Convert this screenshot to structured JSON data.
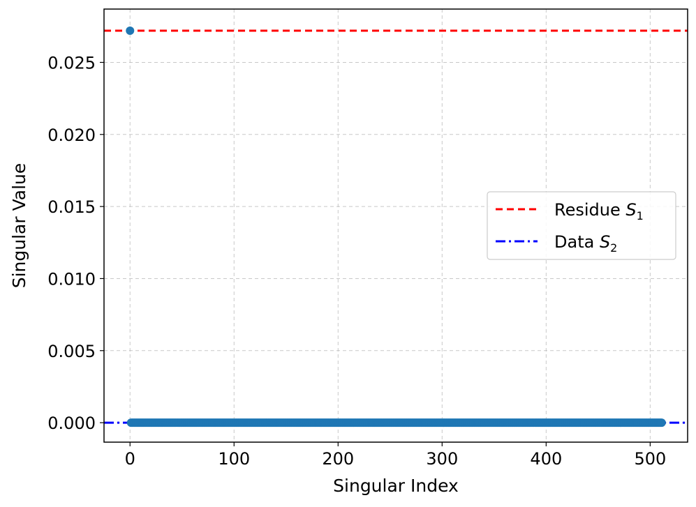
{
  "chart_data": {
    "type": "scatter",
    "xlabel": "Singular Index",
    "ylabel": "Singular Value",
    "xlim": [
      -25,
      536
    ],
    "ylim": [
      -0.00135,
      0.0287
    ],
    "xticks": [
      0,
      100,
      200,
      300,
      400,
      500
    ],
    "yticks": [
      0.0,
      0.005,
      0.01,
      0.015,
      0.02,
      0.025
    ],
    "ytick_labels": [
      "0.000",
      "0.005",
      "0.010",
      "0.015",
      "0.020",
      "0.025"
    ],
    "grid": true,
    "legend_position": "center-right",
    "points": {
      "first": {
        "x": 0,
        "y": 0.0272
      },
      "rest_range": [
        1,
        511
      ],
      "rest_value": 0.0,
      "color": "#1f77b4"
    },
    "series": [
      {
        "name": "Residue S1",
        "legend_main": "Residue ",
        "legend_var": "S",
        "legend_sub": "1",
        "value": 0.0272,
        "color": "#ff0000",
        "style": "dashed"
      },
      {
        "name": "Data S2",
        "legend_main": "Data ",
        "legend_var": "S",
        "legend_sub": "2",
        "value": 0.0,
        "color": "#0000ff",
        "style": "dashdot"
      }
    ]
  }
}
